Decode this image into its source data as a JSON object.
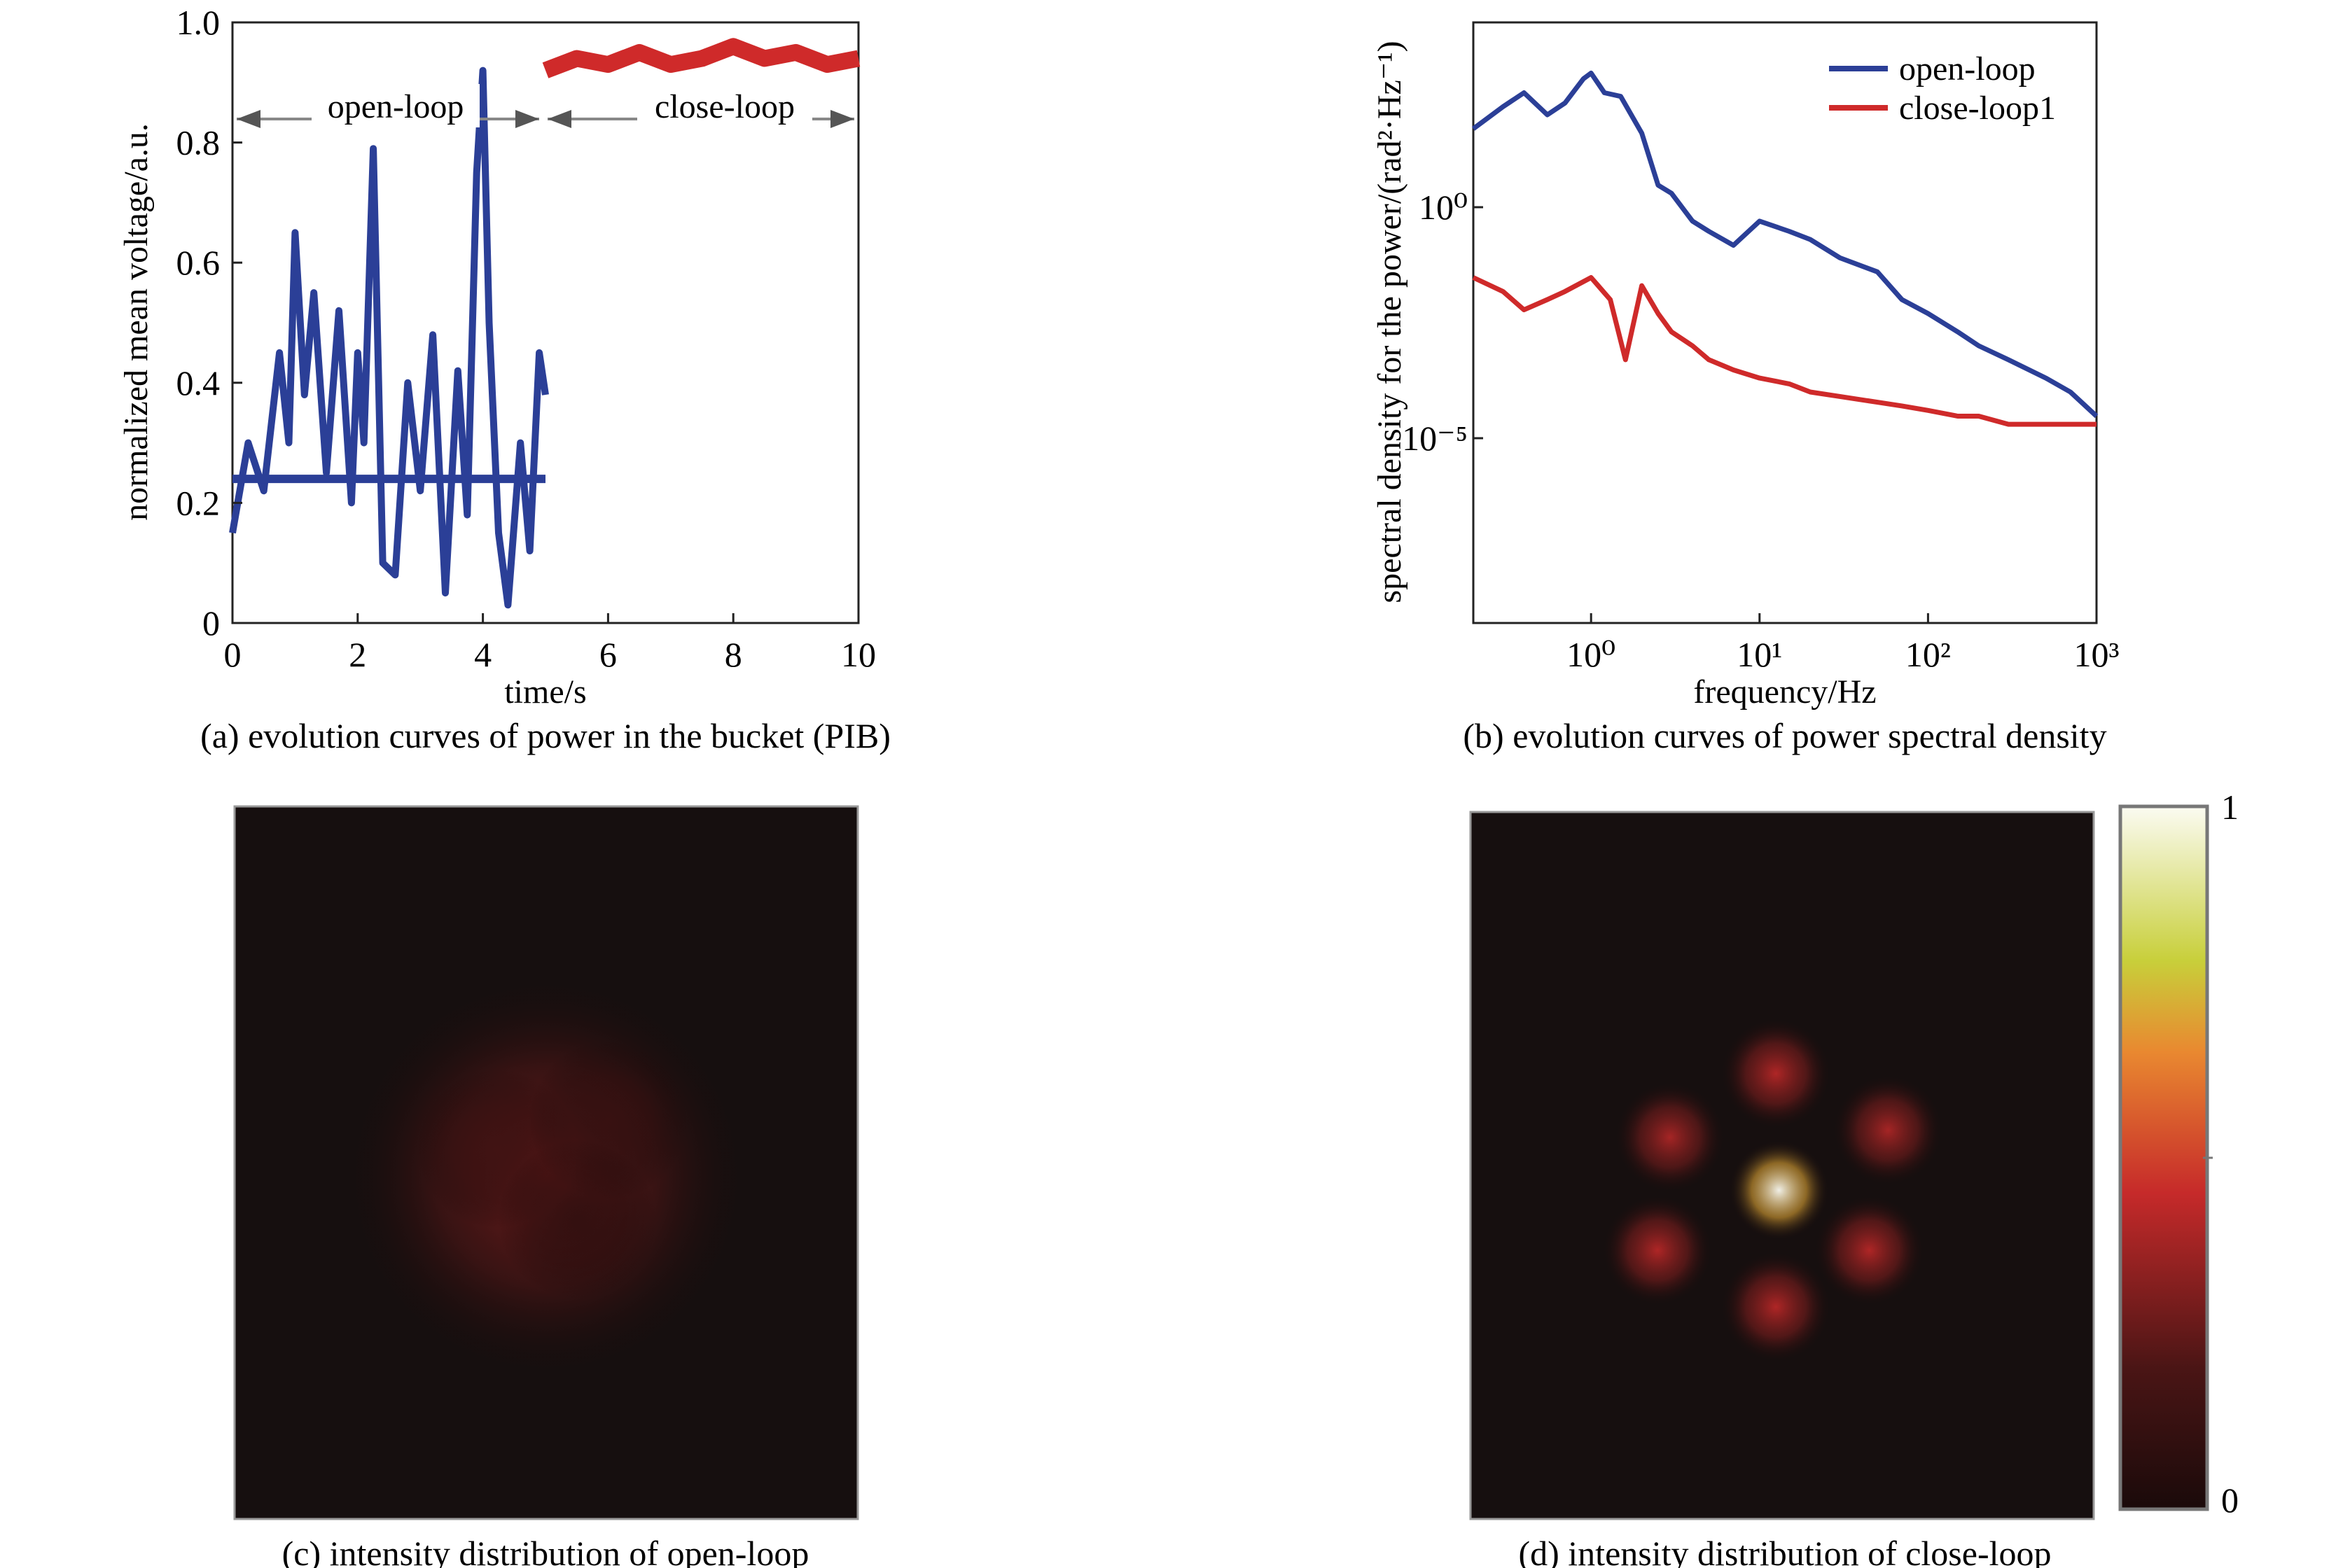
{
  "colors": {
    "open_loop": "#2b3f97",
    "close_loop": "#cf2a2a",
    "axis": "#222222"
  },
  "captions": {
    "a": "(a) evolution curves of power in the bucket (PIB)",
    "b": "(b) evolution curves of power spectral density",
    "c": "(c) intensity distribution of open-loop",
    "d": "(d) intensity distribution of close-loop"
  },
  "chart_data": [
    {
      "id": "a",
      "type": "line",
      "title": "",
      "xlabel": "time/s",
      "ylabel": "normalized mean voltage/a.u.",
      "xlim": [
        0,
        10
      ],
      "ylim": [
        0,
        1.0
      ],
      "xticks": [
        0,
        2,
        4,
        6,
        8,
        10
      ],
      "xtick_labels": [
        "0",
        "2",
        "4",
        "6",
        "8",
        "10"
      ],
      "yticks": [
        0,
        0.2,
        0.4,
        0.6,
        0.8,
        1.0
      ],
      "ytick_labels": [
        "0",
        "0.2",
        "0.4",
        "0.6",
        "0.8",
        "1.0"
      ],
      "annotations": [
        {
          "text": "open-loop",
          "x_range": [
            0,
            5
          ],
          "y": 0.84
        },
        {
          "text": "close-loop",
          "x_range": [
            5,
            10
          ],
          "y": 0.84
        }
      ],
      "series": [
        {
          "x": [
            0,
            0.25,
            0.5,
            0.75,
            0.9,
            1.0,
            1.15,
            1.3,
            1.5,
            1.7,
            1.9,
            2.0,
            2.1,
            2.25,
            2.4,
            2.6,
            2.8,
            3.0,
            3.2,
            3.4,
            3.6,
            3.75,
            3.9,
            4.0,
            4.1,
            4.25,
            4.4,
            4.6,
            4.75,
            4.9,
            5.0
          ],
          "y": [
            0.15,
            0.3,
            0.22,
            0.45,
            0.3,
            0.65,
            0.38,
            0.55,
            0.25,
            0.52,
            0.2,
            0.45,
            0.3,
            0.79,
            0.1,
            0.08,
            0.4,
            0.22,
            0.48,
            0.05,
            0.42,
            0.18,
            0.75,
            0.92,
            0.5,
            0.15,
            0.03,
            0.3,
            0.12,
            0.45,
            0.38
          ]
        },
        {
          "x": [
            0,
            5
          ],
          "y": [
            0.24,
            0.24
          ]
        },
        {
          "x": [
            5,
            5.5,
            6,
            6.5,
            7,
            7.5,
            8,
            8.5,
            9,
            9.5,
            10
          ],
          "y": [
            0.92,
            0.94,
            0.93,
            0.95,
            0.93,
            0.94,
            0.96,
            0.94,
            0.95,
            0.93,
            0.94
          ]
        }
      ]
    },
    {
      "id": "b",
      "type": "line",
      "title": "",
      "xlabel": "frequency/Hz",
      "ylabel": "spectral density for the power/(rad²·Hz⁻¹)",
      "xscale": "log",
      "yscale": "log",
      "xlim": [
        0.2,
        1000
      ],
      "ylim": [
        1e-09,
        10000
      ],
      "xticks": [
        1,
        10,
        100,
        1000
      ],
      "xtick_labels": [
        "10⁰",
        "10¹",
        "10²",
        "10³"
      ],
      "yticks": [
        1,
        1e-05
      ],
      "ytick_labels": [
        "10⁰",
        "10⁻⁵"
      ],
      "legend_position": "top-right",
      "series": [
        {
          "name": "open-loop",
          "x": [
            0.2,
            0.3,
            0.4,
            0.55,
            0.7,
            0.9,
            1.0,
            1.2,
            1.5,
            2.0,
            2.5,
            3,
            4,
            5,
            7,
            10,
            15,
            20,
            30,
            50,
            70,
            100,
            150,
            200,
            300,
            500,
            700,
            1000
          ],
          "y": [
            50,
            150,
            300,
            100,
            180,
            600,
            800,
            300,
            250,
            40,
            3,
            2,
            0.5,
            0.3,
            0.15,
            0.5,
            0.3,
            0.2,
            0.08,
            0.04,
            0.01,
            0.005,
            0.002,
            0.001,
            0.0005,
            0.0002,
            0.0001,
            3e-05
          ]
        },
        {
          "name": "close-loop1",
          "x": [
            0.2,
            0.3,
            0.4,
            0.55,
            0.7,
            1.0,
            1.3,
            1.6,
            2.0,
            2.5,
            3,
            4,
            5,
            7,
            10,
            15,
            20,
            30,
            50,
            70,
            100,
            150,
            200,
            300,
            500,
            700,
            1000
          ],
          "y": [
            0.03,
            0.015,
            0.006,
            0.01,
            0.015,
            0.03,
            0.01,
            0.0005,
            0.02,
            0.005,
            0.002,
            0.001,
            0.0005,
            0.0003,
            0.0002,
            0.00015,
            0.0001,
            8e-05,
            6e-05,
            5e-05,
            4e-05,
            3e-05,
            3e-05,
            2e-05,
            2e-05,
            2e-05,
            2e-05
          ]
        }
      ]
    },
    {
      "id": "c",
      "type": "heatmap",
      "title": "",
      "colormap": "black-red-yellow-white",
      "spots": [
        {
          "x": 0.5,
          "y": 0.52,
          "sigma": 0.2,
          "intensity": 0.3
        },
        {
          "x": 0.42,
          "y": 0.48,
          "sigma": 0.08,
          "intensity": 0.16
        },
        {
          "x": 0.6,
          "y": 0.44,
          "sigma": 0.08,
          "intensity": 0.12
        },
        {
          "x": 0.55,
          "y": 0.58,
          "sigma": 0.08,
          "intensity": 0.1
        }
      ]
    },
    {
      "id": "d",
      "type": "heatmap",
      "title": "",
      "colormap": "black-red-yellow-white",
      "colorbar": {
        "min_label": "0",
        "max_label": "1"
      },
      "spots": [
        {
          "x": 0.495,
          "y": 0.535,
          "sigma": 0.05,
          "intensity": 1.0
        },
        {
          "x": 0.49,
          "y": 0.37,
          "sigma": 0.055,
          "intensity": 0.42
        },
        {
          "x": 0.32,
          "y": 0.46,
          "sigma": 0.055,
          "intensity": 0.4
        },
        {
          "x": 0.67,
          "y": 0.45,
          "sigma": 0.055,
          "intensity": 0.4
        },
        {
          "x": 0.3,
          "y": 0.62,
          "sigma": 0.055,
          "intensity": 0.42
        },
        {
          "x": 0.64,
          "y": 0.62,
          "sigma": 0.055,
          "intensity": 0.42
        },
        {
          "x": 0.49,
          "y": 0.7,
          "sigma": 0.055,
          "intensity": 0.42
        }
      ]
    }
  ]
}
